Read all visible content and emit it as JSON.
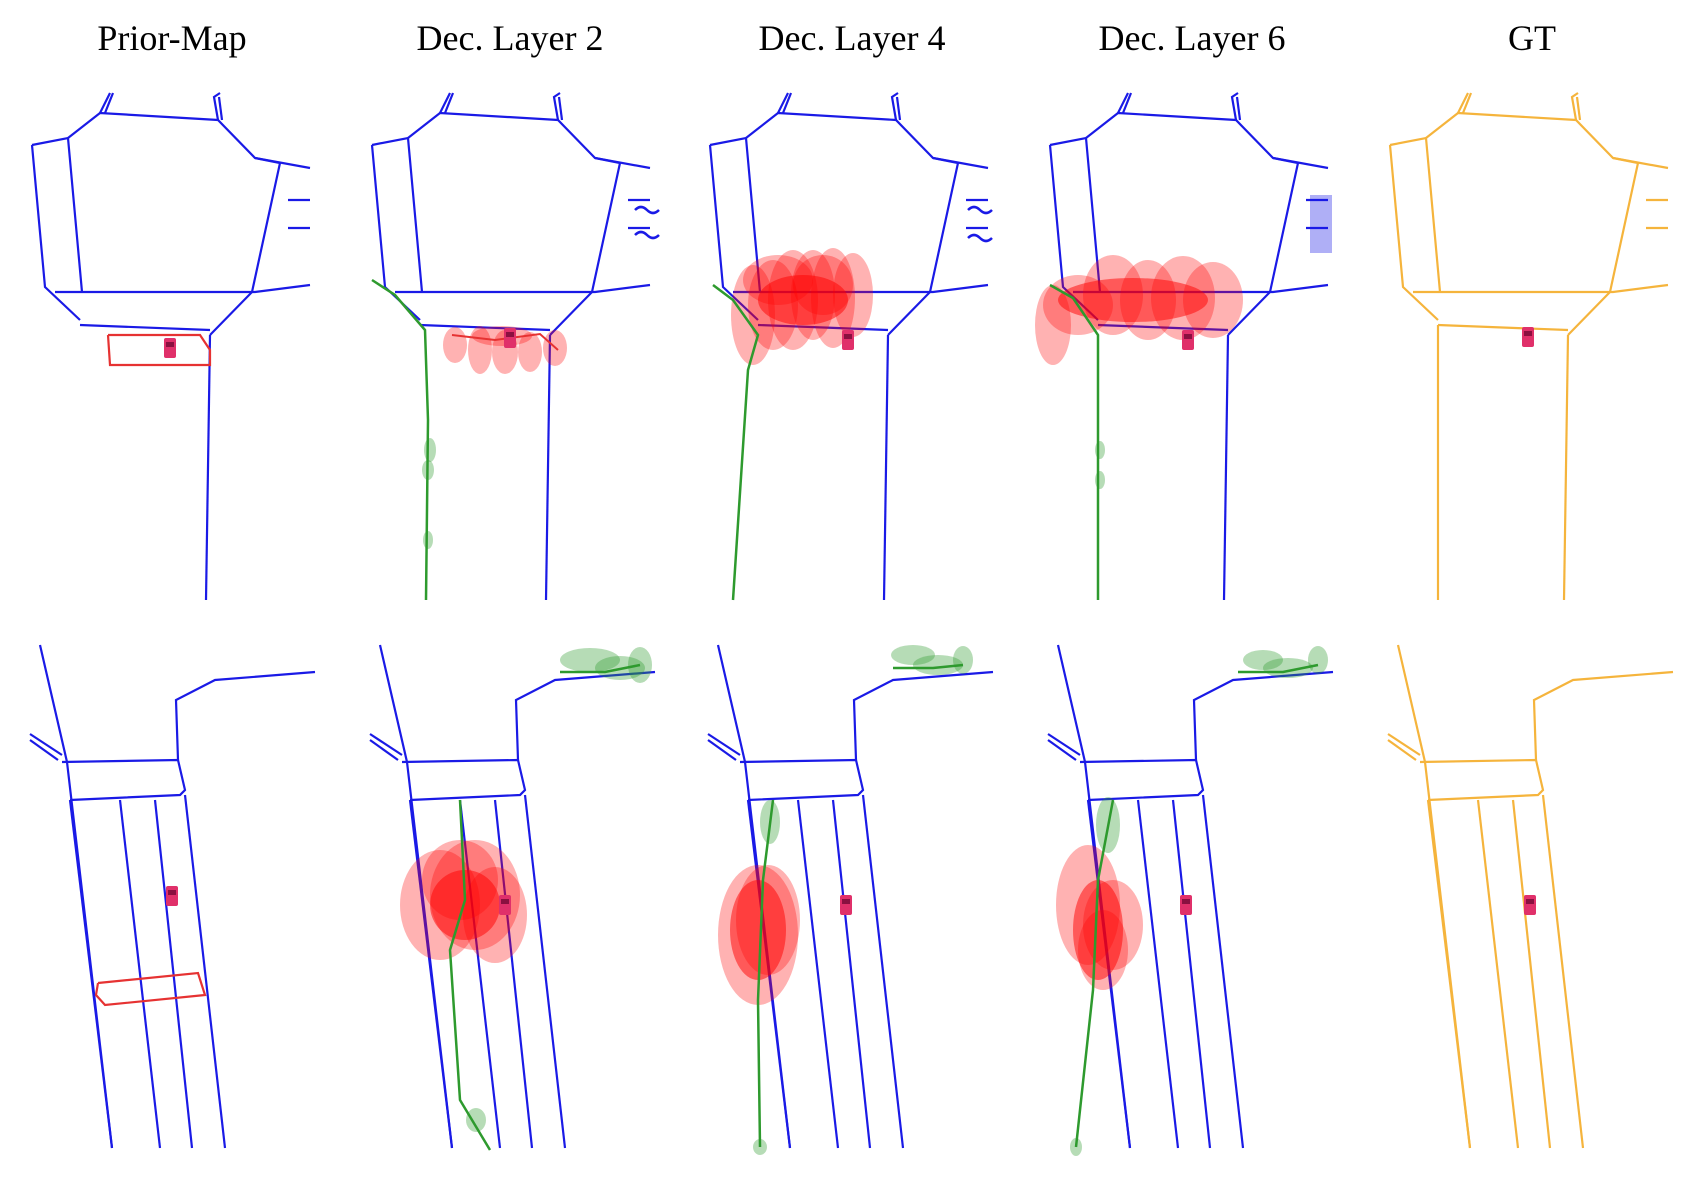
{
  "figure": {
    "column_titles": [
      "Prior-Map",
      "Dec. Layer 2",
      "Dec. Layer 4",
      "Dec. Layer 6",
      "GT"
    ],
    "colors": {
      "map_lines": "#1a1ae6",
      "ground_truth": "#f5b43c",
      "predicted_uncertainty": "#ff0000",
      "predicted_centerline": "#2e9a2e",
      "ego_vehicle": "#e0306a",
      "prior_change_region": "#e63232"
    },
    "rows": 2,
    "columns": 5
  }
}
